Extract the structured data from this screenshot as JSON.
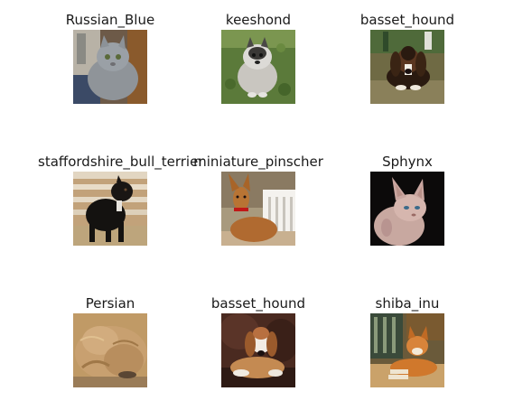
{
  "panels": [
    {
      "label": "Russian_Blue"
    },
    {
      "label": "keeshond"
    },
    {
      "label": "basset_hound"
    },
    {
      "label": "staffordshire_bull_terrier"
    },
    {
      "label": "miniature_pinscher"
    },
    {
      "label": "Sphynx"
    },
    {
      "label": "Persian"
    },
    {
      "label": "basset_hound"
    },
    {
      "label": "shiba_inu"
    }
  ]
}
